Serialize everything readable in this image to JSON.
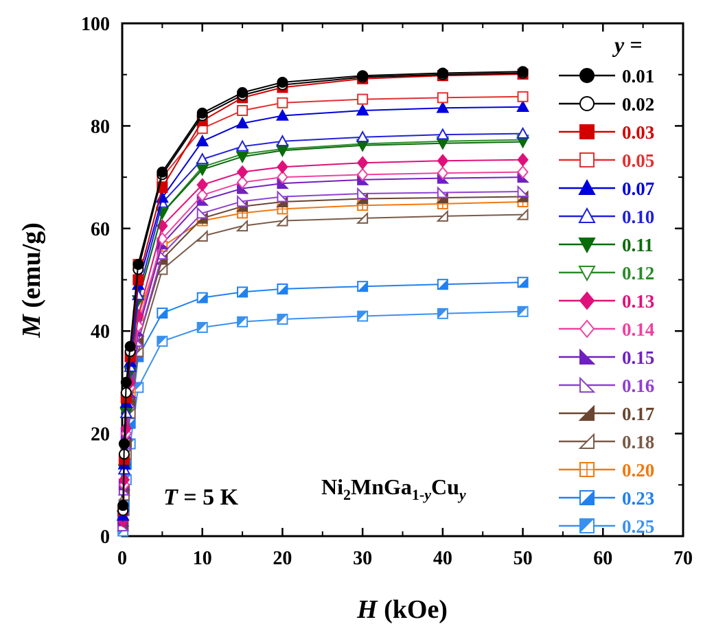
{
  "chart_data": {
    "type": "line",
    "xlim": [
      0,
      70
    ],
    "ylim": [
      0,
      100
    ],
    "xticks": [
      0,
      10,
      20,
      30,
      40,
      50,
      60,
      70
    ],
    "yticks": [
      0,
      20,
      40,
      60,
      80,
      100
    ],
    "xlabel": {
      "symbol": "H",
      "unit": " (kOe)"
    },
    "ylabel": {
      "symbol": "M",
      "unit": " (emu/g)"
    },
    "legend_title": "y =",
    "legend_placement": "right",
    "annotation_temperature": {
      "symbol": "T",
      "rest": " = 5 K"
    },
    "annotation_formula": {
      "a": "Ni",
      "b": "2",
      "c": "MnGa",
      "d": "1-",
      "e": "y",
      "f": "Cu",
      "g": "y"
    },
    "x": [
      0.1,
      0.25,
      0.5,
      1,
      2,
      5,
      10,
      15,
      20,
      30,
      40,
      50
    ],
    "series": [
      {
        "name": "0.01",
        "color": "#000000",
        "marker": "circle",
        "fill": "full",
        "values": [
          6,
          18,
          30,
          37,
          53,
          71,
          82.5,
          86.5,
          88.5,
          89.8,
          90.3,
          90.6
        ]
      },
      {
        "name": "0.02",
        "color": "#000000",
        "marker": "circle",
        "fill": "open",
        "values": [
          5,
          16,
          28,
          36,
          52,
          70.5,
          82,
          86,
          88,
          89.5,
          90,
          90.3
        ]
      },
      {
        "name": "0.03",
        "color": "#d40000",
        "marker": "square",
        "fill": "full",
        "values": [
          5,
          15,
          27,
          35,
          50,
          68,
          81,
          85.5,
          87.5,
          89.2,
          89.8,
          90.1
        ]
      },
      {
        "name": "0.05",
        "color": "#e03030",
        "marker": "square",
        "fill": "open",
        "values": [
          5,
          15,
          27,
          35,
          53,
          70,
          79.5,
          83,
          84.5,
          85.2,
          85.5,
          85.7
        ]
      },
      {
        "name": "0.07",
        "color": "#0000dd",
        "marker": "triangle-up",
        "fill": "full",
        "values": [
          4,
          14,
          26,
          34,
          49,
          66,
          77,
          80.5,
          82,
          83,
          83.5,
          83.7
        ]
      },
      {
        "name": "0.10",
        "color": "#2020dd",
        "marker": "triangle-up",
        "fill": "open",
        "values": [
          4,
          13,
          24,
          33,
          47,
          65,
          73.5,
          76,
          77,
          77.8,
          78.3,
          78.5
        ]
      },
      {
        "name": "0.11",
        "color": "#0a6b0a",
        "marker": "triangle-down",
        "fill": "full",
        "values": [
          4,
          13,
          24,
          32,
          46,
          63,
          71.5,
          74,
          75.2,
          76.2,
          76.6,
          76.9
        ]
      },
      {
        "name": "0.12",
        "color": "#2a8a2a",
        "marker": "triangle-down",
        "fill": "open",
        "values": [
          4,
          13,
          24,
          32,
          46,
          63,
          72,
          74.5,
          75.5,
          76.5,
          77,
          77.3
        ]
      },
      {
        "name": "0.13",
        "color": "#e0107a",
        "marker": "diamond",
        "fill": "full",
        "values": [
          3,
          11,
          21,
          30,
          43,
          60.5,
          68.5,
          71,
          72,
          72.8,
          73.2,
          73.4
        ]
      },
      {
        "name": "0.14",
        "color": "#f040a0",
        "marker": "diamond",
        "fill": "open",
        "values": [
          3,
          10,
          20,
          29,
          41,
          58,
          66.5,
          69,
          70,
          70.5,
          70.8,
          71
        ]
      },
      {
        "name": "0.15",
        "color": "#7020c0",
        "marker": "triangle-right",
        "fill": "full",
        "values": [
          3,
          10,
          20,
          28,
          40,
          57,
          65.5,
          67.8,
          68.8,
          69.5,
          69.8,
          70
        ]
      },
      {
        "name": "0.16",
        "color": "#9040d0",
        "marker": "triangle-right",
        "fill": "open",
        "values": [
          2,
          9,
          18,
          26,
          38,
          55,
          63,
          65.3,
          66.2,
          66.8,
          67,
          67.2
        ]
      },
      {
        "name": "0.17",
        "color": "#6b4530",
        "marker": "triangle-upleft",
        "fill": "full",
        "values": [
          2,
          9,
          18,
          26,
          38,
          54,
          62,
          64.3,
          65.2,
          65.8,
          66,
          66.2
        ]
      },
      {
        "name": "0.18",
        "color": "#7a5a48",
        "marker": "triangle-upleft",
        "fill": "open",
        "values": [
          2,
          8,
          16,
          24,
          36,
          52,
          58.5,
          60.5,
          61.5,
          62,
          62.4,
          62.7
        ]
      },
      {
        "name": "0.20",
        "color": "#f07810",
        "marker": "square-cross",
        "fill": "open",
        "values": [
          2,
          9,
          18,
          28,
          43,
          56.5,
          61.5,
          63,
          63.8,
          64.5,
          64.8,
          65.2
        ]
      },
      {
        "name": "0.23",
        "color": "#2080f0",
        "marker": "square-half",
        "fill": "half",
        "values": [
          2,
          6,
          14,
          22,
          35,
          43.5,
          46.5,
          47.6,
          48.2,
          48.7,
          49.1,
          49.5
        ]
      },
      {
        "name": "0.25",
        "color": "#3a90f0",
        "marker": "square-half-alt",
        "fill": "half",
        "values": [
          1,
          5,
          11,
          18,
          29,
          38,
          40.7,
          41.8,
          42.3,
          42.9,
          43.4,
          43.8
        ]
      }
    ]
  }
}
